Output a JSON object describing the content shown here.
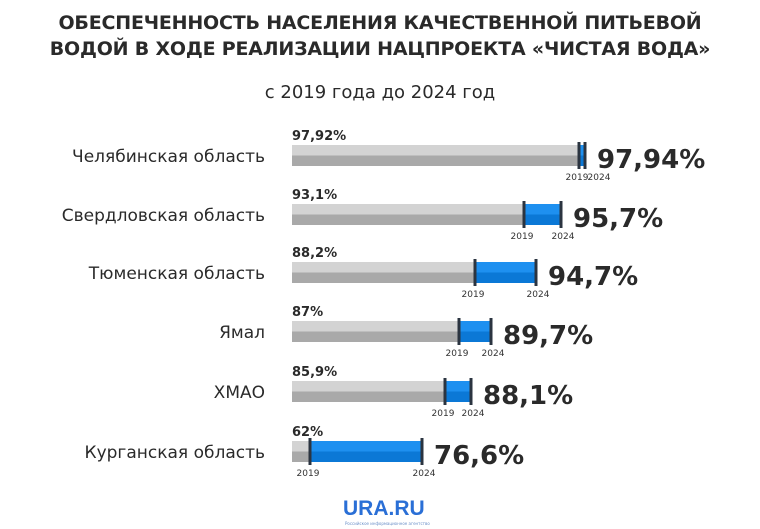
{
  "title_line1": "ОБЕСПЕЧЕННОСТЬ НАСЕЛЕНИЯ КАЧЕСТВЕННОЙ ПИТЬЕВОЙ",
  "title_line2": "ВОДОЙ В ХОДЕ РЕАЛИЗАЦИИ НАЦПРОЕКТА «ЧИСТАЯ ВОДА»",
  "subtitle": "с 2019 года до 2024 год",
  "logo": "URA.RU",
  "logo_tagline": "Российское информационное агентство",
  "colors": {
    "bar_light": "#d3d3d3",
    "bar_dark": "#a9a9a9",
    "blue_light": "#1e90f0",
    "blue_dark": "#0b78d6",
    "marker": "#2b3440"
  },
  "chart_data": {
    "type": "bar",
    "title": "Обеспеченность населения качественной питьевой водой в ходе реализации нацпроекта «Чистая вода»",
    "subtitle": "с 2019 года до 2024 год",
    "unit": "%",
    "start_year_label": "2019",
    "end_year_label": "2024",
    "categories": [
      "Челябинская область",
      "Свердловская область",
      "Тюменская область",
      "Ямал",
      "ХМАО",
      "Курганская область"
    ],
    "series": [
      {
        "name": "2019",
        "values": [
          97.92,
          93.1,
          88.2,
          87,
          85.9,
          62
        ],
        "labels": [
          "97,92%",
          "93,1%",
          "88,2%",
          "87%",
          "85,9%",
          "62%"
        ]
      },
      {
        "name": "2024",
        "values": [
          97.94,
          95.7,
          94.7,
          89.7,
          88.1,
          76.6
        ],
        "labels": [
          "97,94%",
          "95,7%",
          "94,7%",
          "89,7%",
          "88,1%",
          "76,6%"
        ]
      }
    ]
  }
}
